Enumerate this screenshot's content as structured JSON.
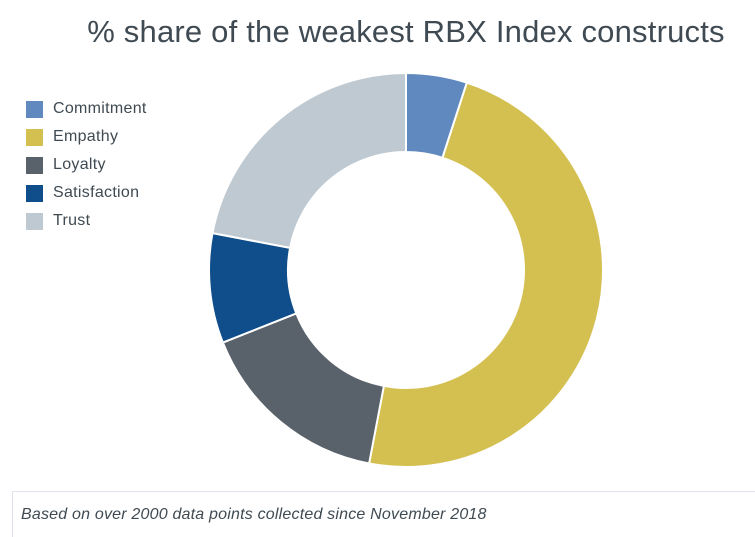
{
  "chart_data": {
    "type": "pie",
    "title": "% share of the weakest RBX Index constructs",
    "variant": "donut",
    "categories": [
      "Commitment",
      "Empathy",
      "Loyalty",
      "Satisfaction",
      "Trust"
    ],
    "values": [
      5,
      48,
      16,
      9,
      22
    ],
    "colors": [
      "#6089bf",
      "#d4c050",
      "#59616a",
      "#0f4e8a",
      "#bfc9d2"
    ],
    "legend_position": "left"
  },
  "footnote": "Based on over 2000 data points collected since November 2018"
}
